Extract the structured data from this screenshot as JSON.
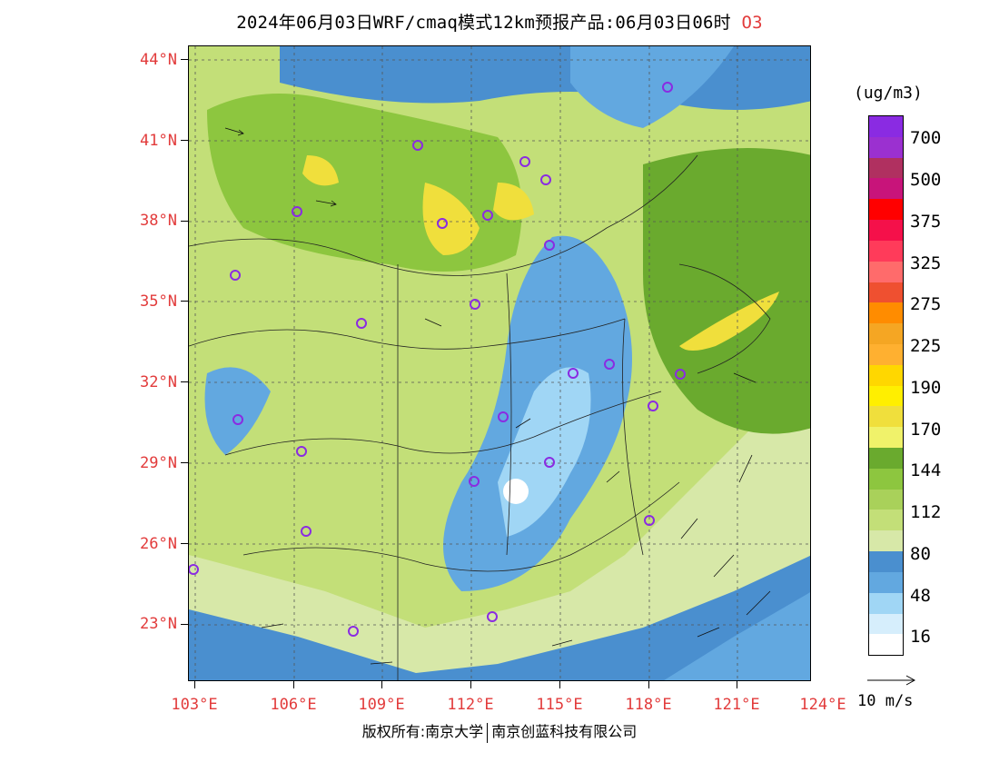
{
  "title": {
    "main": "2024年06月03日WRF/cmaq模式12km预报产品:06月03日06时",
    "species": "O3"
  },
  "axes": {
    "lat_labels": [
      "44°N",
      "41°N",
      "38°N",
      "35°N",
      "32°N",
      "29°N",
      "26°N",
      "23°N"
    ],
    "lon_labels": [
      "103°E",
      "106°E",
      "109°E",
      "112°E",
      "115°E",
      "118°E",
      "121°E",
      "124°E"
    ]
  },
  "legend": {
    "unit": "(ug/m3)",
    "labels": [
      "700",
      "500",
      "375",
      "325",
      "275",
      "225",
      "190",
      "170",
      "144",
      "112",
      "80",
      "48",
      "16"
    ],
    "colors": [
      "#8a2be2",
      "#9b30d0",
      "#b03060",
      "#c8147a",
      "#ff0000",
      "#f5104a",
      "#ff3b5a",
      "#ff6b6b",
      "#ef5030",
      "#ff8c00",
      "#f5a623",
      "#ffb030",
      "#ffd700",
      "#ffef00",
      "#f0df3c",
      "#f0f26a",
      "#6aaa2e",
      "#8dc63f",
      "#a9d15a",
      "#c3df78",
      "#d7e8a8",
      "#4a8fcf",
      "#62a8e0",
      "#a0d6f5",
      "#d6eefc",
      "#ffffff"
    ],
    "wind_key": "10 m/s"
  },
  "footer": {
    "left": "版权所有:南京大学",
    "right": "南京创蓝科技有限公司"
  }
}
